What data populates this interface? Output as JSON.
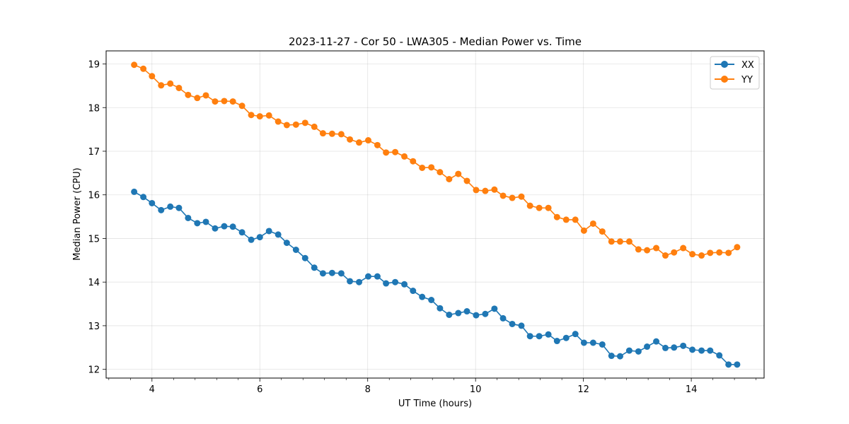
{
  "chart_data": {
    "type": "line",
    "title": "2023-11-27 - Cor 50 - LWA305 - Median Power vs. Time",
    "xlabel": "UT Time (hours)",
    "ylabel": "Median Power (CPU)",
    "xlim": [
      3.15,
      15.35
    ],
    "ylim": [
      11.8,
      19.3
    ],
    "xticks": [
      4,
      6,
      8,
      10,
      12,
      14
    ],
    "xtick_labels": [
      "4",
      "6",
      "8",
      "10",
      "12",
      "14"
    ],
    "yticks": [
      12,
      13,
      14,
      15,
      16,
      17,
      18,
      19
    ],
    "ytick_labels": [
      "12",
      "13",
      "14",
      "15",
      "16",
      "17",
      "18",
      "19"
    ],
    "x_minor_step": 0.4,
    "grid": true,
    "legend_position": "top-right",
    "x": [
      3.67,
      3.84,
      4.0,
      4.17,
      4.34,
      4.5,
      4.67,
      4.84,
      5.0,
      5.17,
      5.34,
      5.5,
      5.67,
      5.84,
      6.0,
      6.17,
      6.34,
      6.5,
      6.67,
      6.84,
      7.01,
      7.17,
      7.34,
      7.51,
      7.67,
      7.84,
      8.01,
      8.18,
      8.34,
      8.51,
      8.68,
      8.84,
      9.01,
      9.18,
      9.34,
      9.51,
      9.68,
      9.84,
      10.01,
      10.18,
      10.35,
      10.51,
      10.68,
      10.85,
      11.01,
      11.18,
      11.35,
      11.51,
      11.68,
      11.85,
      12.01,
      12.18,
      12.35,
      12.52,
      12.68,
      12.85,
      13.02,
      13.18,
      13.35,
      13.52,
      13.68,
      13.85,
      14.02,
      14.19,
      14.35,
      14.52,
      14.69,
      14.85
    ],
    "series": [
      {
        "name": "XX",
        "color": "#1f77b4",
        "values": [
          16.07,
          15.95,
          15.81,
          15.65,
          15.73,
          15.7,
          15.47,
          15.35,
          15.38,
          15.23,
          15.28,
          15.27,
          15.14,
          14.97,
          15.03,
          15.17,
          15.09,
          14.9,
          14.74,
          14.55,
          14.33,
          14.2,
          14.21,
          14.2,
          14.02,
          14.0,
          14.13,
          14.13,
          13.97,
          14.0,
          13.95,
          13.8,
          13.66,
          13.59,
          13.4,
          13.25,
          13.29,
          13.33,
          13.24,
          13.27,
          13.39,
          13.17,
          13.04,
          13.0,
          12.76,
          12.76,
          12.8,
          12.65,
          12.72,
          12.81,
          12.61,
          12.61,
          12.57,
          12.31,
          12.3,
          12.43,
          12.41,
          12.52,
          12.64,
          12.49,
          12.5,
          12.54,
          12.45,
          12.43,
          12.43,
          12.32,
          12.11,
          12.11
        ]
      },
      {
        "name": "YY",
        "color": "#ff7f0e",
        "values": [
          18.98,
          18.89,
          18.72,
          18.51,
          18.55,
          18.45,
          18.29,
          18.22,
          18.28,
          18.14,
          18.15,
          18.14,
          18.04,
          17.83,
          17.8,
          17.82,
          17.68,
          17.6,
          17.61,
          17.65,
          17.56,
          17.41,
          17.4,
          17.39,
          17.27,
          17.2,
          17.25,
          17.14,
          16.97,
          16.98,
          16.88,
          16.77,
          16.62,
          16.63,
          16.52,
          16.36,
          16.48,
          16.32,
          16.11,
          16.09,
          16.12,
          15.98,
          15.93,
          15.96,
          15.75,
          15.7,
          15.7,
          15.49,
          15.43,
          15.43,
          15.18,
          15.34,
          15.16,
          14.93,
          14.93,
          14.93,
          14.75,
          14.73,
          14.78,
          14.61,
          14.68,
          14.78,
          14.64,
          14.61,
          14.67,
          14.68,
          14.67,
          14.8
        ]
      }
    ]
  }
}
